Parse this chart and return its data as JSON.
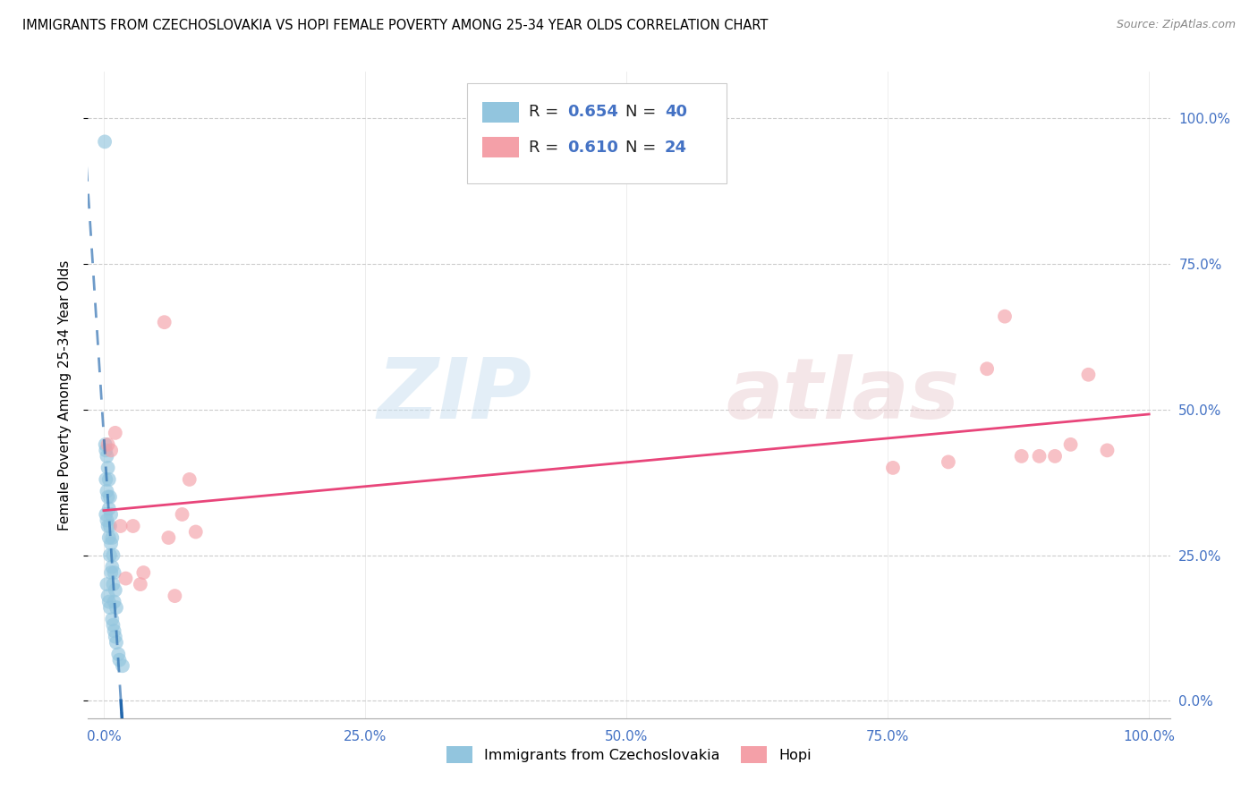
{
  "title": "IMMIGRANTS FROM CZECHOSLOVAKIA VS HOPI FEMALE POVERTY AMONG 25-34 YEAR OLDS CORRELATION CHART",
  "source": "Source: ZipAtlas.com",
  "ylabel": "Female Poverty Among 25-34 Year Olds",
  "legend_bottom": [
    "Immigrants from Czechoslovakia",
    "Hopi"
  ],
  "blue_R": "0.654",
  "blue_N": "40",
  "pink_R": "0.610",
  "pink_N": "24",
  "blue_color": "#92c5de",
  "pink_color": "#f4a0a8",
  "blue_line_solid_color": "#2166ac",
  "pink_line_color": "#e8457a",
  "axis_color": "#4472C4",
  "text_color": "#222222",
  "grid_color": "#cccccc",
  "background_color": "#ffffff",
  "blue_scatter_x": [
    0.0015,
    0.002,
    0.002,
    0.002,
    0.003,
    0.003,
    0.003,
    0.003,
    0.004,
    0.004,
    0.004,
    0.004,
    0.005,
    0.005,
    0.005,
    0.005,
    0.006,
    0.006,
    0.006,
    0.006,
    0.007,
    0.007,
    0.007,
    0.008,
    0.008,
    0.008,
    0.009,
    0.009,
    0.009,
    0.01,
    0.01,
    0.01,
    0.011,
    0.011,
    0.012,
    0.012,
    0.014,
    0.015,
    0.018,
    0.001
  ],
  "blue_scatter_y": [
    0.44,
    0.43,
    0.38,
    0.32,
    0.42,
    0.36,
    0.31,
    0.2,
    0.4,
    0.35,
    0.3,
    0.18,
    0.38,
    0.33,
    0.28,
    0.17,
    0.35,
    0.3,
    0.25,
    0.16,
    0.32,
    0.27,
    0.22,
    0.28,
    0.23,
    0.14,
    0.25,
    0.2,
    0.13,
    0.22,
    0.17,
    0.12,
    0.19,
    0.11,
    0.16,
    0.1,
    0.08,
    0.07,
    0.06,
    0.96
  ],
  "pink_scatter_x": [
    0.004,
    0.007,
    0.011,
    0.016,
    0.021,
    0.028,
    0.035,
    0.058,
    0.062,
    0.068,
    0.075,
    0.082,
    0.088,
    0.755,
    0.808,
    0.845,
    0.862,
    0.878,
    0.895,
    0.91,
    0.925,
    0.942,
    0.96,
    0.038
  ],
  "pink_scatter_y": [
    0.44,
    0.43,
    0.46,
    0.3,
    0.21,
    0.3,
    0.2,
    0.65,
    0.28,
    0.18,
    0.32,
    0.38,
    0.29,
    0.4,
    0.41,
    0.57,
    0.66,
    0.42,
    0.42,
    0.42,
    0.44,
    0.56,
    0.43,
    0.22
  ],
  "xlim": [
    -0.015,
    1.02
  ],
  "ylim": [
    -0.03,
    1.08
  ],
  "xticks": [
    0.0,
    0.25,
    0.5,
    0.75,
    1.0
  ],
  "xtick_labels": [
    "0.0%",
    "25.0%",
    "50.0%",
    "75.0%",
    "100.0%"
  ],
  "ytick_vals": [
    0.0,
    0.25,
    0.5,
    0.75,
    1.0
  ],
  "ytick_labels": [
    "0.0%",
    "25.0%",
    "50.0%",
    "75.0%",
    "100.0%"
  ]
}
